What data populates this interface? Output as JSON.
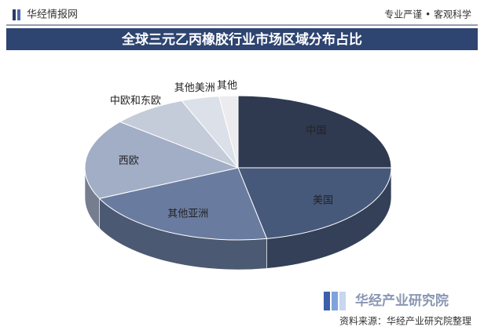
{
  "header": {
    "brand": "华经情报网",
    "slogan": "专业严谨 • 客观科学"
  },
  "chart_data": {
    "type": "pie3d",
    "title": "全球三元乙丙橡胶行业市场区域分布占比",
    "categories": [
      "中国",
      "美国",
      "其他亚洲",
      "西欧",
      "中欧和东欧",
      "其他美洲",
      "其他"
    ],
    "values": [
      25,
      22,
      21,
      18,
      8,
      4,
      2
    ],
    "colors": [
      "#2f3a51",
      "#47597a",
      "#6a7ba0",
      "#a2aec6",
      "#c4ccd9",
      "#dbe0e9",
      "#ececee"
    ]
  },
  "footer": {
    "logo": "华经产业研究院",
    "source": "资料来源：华经产业研究院整理"
  }
}
